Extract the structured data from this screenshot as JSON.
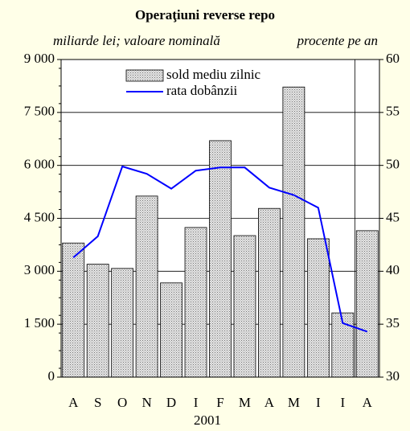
{
  "chart_data": {
    "type": "bar_line",
    "title": "Operaţiuni reverse repo",
    "y_label": "miliarde lei; valoare nominală",
    "y2_label": "procente pe an",
    "x_label": "2001",
    "categories": [
      "A",
      "S",
      "O",
      "N",
      "D",
      "I",
      "F",
      "M",
      "A",
      "M",
      "I",
      "I",
      "A"
    ],
    "series": [
      {
        "name": "sold mediu zilnic",
        "type": "bar",
        "color": "#c8c8c8",
        "values": [
          3800,
          3200,
          3080,
          5130,
          2670,
          4240,
          6700,
          4010,
          4780,
          8220,
          3920,
          1820,
          4150
        ]
      },
      {
        "name": "rata dobânzii",
        "type": "line",
        "axis": "y2",
        "color": "#0000ff",
        "values": [
          41.3,
          43.3,
          49.9,
          49.2,
          47.8,
          49.5,
          49.8,
          49.8,
          47.9,
          47.2,
          46.0,
          35.1,
          34.3
        ]
      }
    ],
    "ylim": [
      0,
      9000
    ],
    "yticks": [
      0,
      {
        "value": 1500,
        "label": "1 500"
      },
      {
        "value": 3000,
        "label": "3 000"
      },
      {
        "value": 4500,
        "label": "4 500"
      },
      {
        "value": 6000,
        "label": "6 000"
      },
      {
        "value": 7500,
        "label": "7 500"
      },
      {
        "value": 9000,
        "label": "9 000"
      }
    ],
    "y2lim": [
      30,
      60
    ],
    "y2ticks": [
      30,
      35,
      40,
      45,
      50,
      55,
      60
    ],
    "grid": true,
    "legend": "top"
  }
}
